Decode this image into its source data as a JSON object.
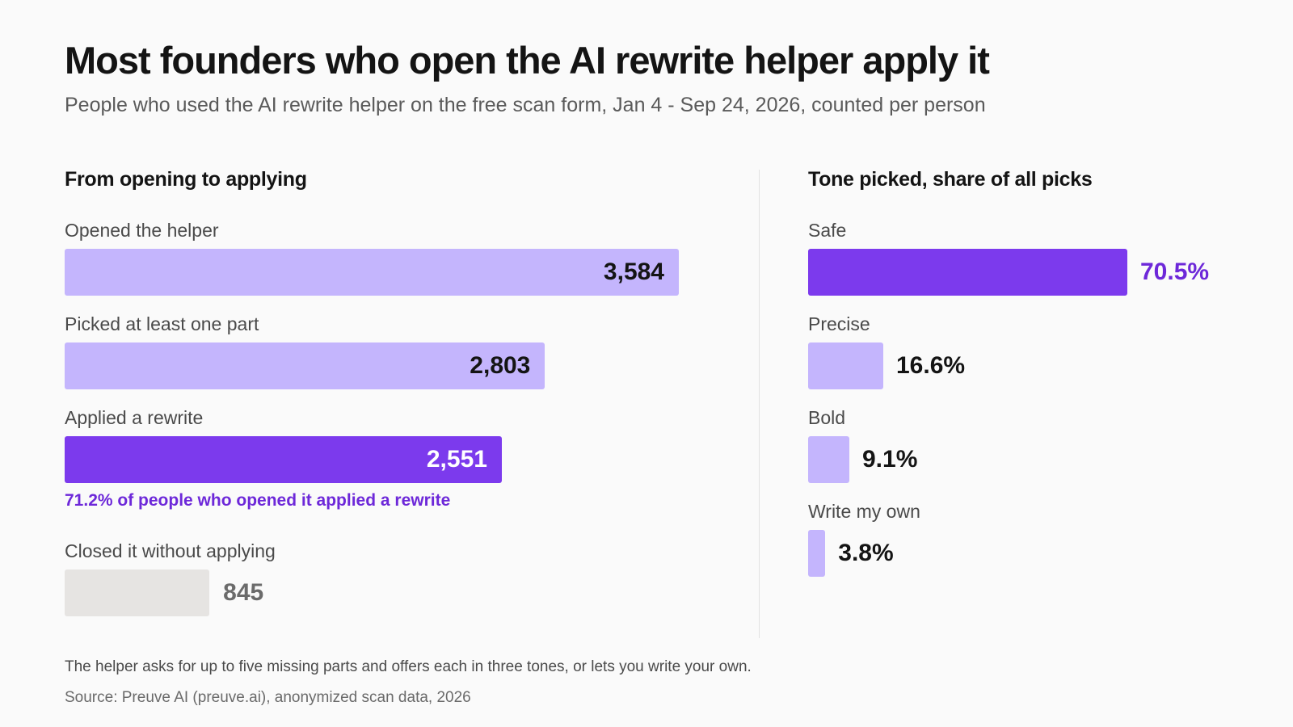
{
  "title": "Most founders who open the AI rewrite helper apply it",
  "subtitle": "People who used the AI rewrite helper on the free scan form, Jan 4 - Sep 24, 2026, counted per person",
  "note": "The helper asks for up to five missing parts and offers each in three tones, or lets you write your own.",
  "source": "Source: Preuve AI (preuve.ai), anonymized scan data, 2026",
  "colors": {
    "accent": "#7c3aed",
    "accent_text": "#6d28d9",
    "light": "#c4b5fd",
    "gray": "#e6e4e2",
    "gray_text": "#6b6b6b"
  },
  "chart_data": [
    {
      "type": "bar",
      "orientation": "horizontal",
      "title": "From opening to applying",
      "categories": [
        "Opened the helper",
        "Picked at least one part",
        "Applied a rewrite",
        "Closed it without applying"
      ],
      "values": [
        3584,
        2803,
        2551,
        845
      ],
      "value_labels": [
        "3,584",
        "2,803",
        "2,551",
        "845"
      ],
      "highlight": "Applied a rewrite",
      "annotation": "71.2% of people who opened it applied a rewrite",
      "xlim": [
        0,
        3584
      ],
      "grid": false
    },
    {
      "type": "bar",
      "orientation": "horizontal",
      "title": "Tone picked, share of all picks",
      "categories": [
        "Safe",
        "Precise",
        "Bold",
        "Write my own"
      ],
      "values": [
        70.5,
        16.6,
        9.1,
        3.8
      ],
      "value_labels": [
        "70.5%",
        "16.6%",
        "9.1%",
        "3.8%"
      ],
      "highlight": "Safe",
      "xlim": [
        0,
        70.5
      ],
      "grid": false
    }
  ]
}
